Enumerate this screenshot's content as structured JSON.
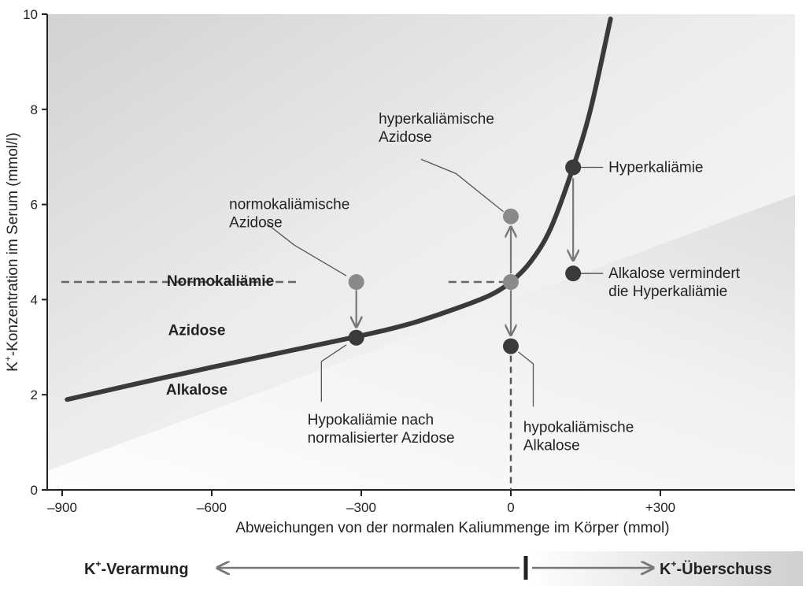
{
  "chart_data": {
    "type": "line",
    "xlabel": "Abweichungen von der normalen Kaliummenge im Körper (mmol)",
    "ylabel_prefix": "K",
    "ylabel_sup": "+",
    "ylabel_rest": "-Konzentration im Serum (mmol/l)",
    "xlim": [
      -930,
      570
    ],
    "ylim": [
      0,
      10
    ],
    "x_ticks": [
      {
        "value": -900,
        "label": "–900"
      },
      {
        "value": -600,
        "label": "–600"
      },
      {
        "value": -300,
        "label": "–300"
      },
      {
        "value": 0,
        "label": "0"
      },
      {
        "value": 300,
        "label": "+300"
      }
    ],
    "y_ticks": [
      {
        "value": 0,
        "label": "0"
      },
      {
        "value": 2,
        "label": "2"
      },
      {
        "value": 4,
        "label": "4"
      },
      {
        "value": 6,
        "label": "6"
      },
      {
        "value": 8,
        "label": "8"
      },
      {
        "value": 10,
        "label": "10"
      }
    ],
    "curve": [
      [
        -890,
        1.9
      ],
      [
        -700,
        2.35
      ],
      [
        -500,
        2.8
      ],
      [
        -310,
        3.22
      ],
      [
        -200,
        3.5
      ],
      [
        -100,
        3.85
      ],
      [
        -40,
        4.1
      ],
      [
        0,
        4.37
      ],
      [
        40,
        4.8
      ],
      [
        80,
        5.5
      ],
      [
        125,
        6.78
      ],
      [
        160,
        8.0
      ],
      [
        200,
        9.9
      ]
    ],
    "normal_level": 4.37,
    "normal_level_label": "Normokaliämie",
    "region_labels": [
      {
        "text": "Azidose",
        "x": -630,
        "y": 3.25
      },
      {
        "text": "Alkalose",
        "x": -630,
        "y": 2.0
      }
    ],
    "points": [
      {
        "id": "normo-azidose",
        "x": -310,
        "y": 4.37,
        "color": "#8a8a8a"
      },
      {
        "id": "hypo-nach-azidose",
        "x": -310,
        "y": 3.2,
        "color": "#3a3a3a"
      },
      {
        "id": "normal",
        "x": 0,
        "y": 4.37,
        "color": "#8a8a8a"
      },
      {
        "id": "hyper-azidose",
        "x": 0,
        "y": 5.75,
        "color": "#8a8a8a"
      },
      {
        "id": "hypo-alkalose",
        "x": 0,
        "y": 3.02,
        "color": "#3a3a3a"
      },
      {
        "id": "hyperkaliaemie",
        "x": 125,
        "y": 6.78,
        "color": "#3a3a3a"
      },
      {
        "id": "alkalose-vermindert",
        "x": 125,
        "y": 4.55,
        "color": "#3a3a3a"
      }
    ],
    "annotations": [
      {
        "id": "normokaliaemische-azidose",
        "lines": [
          "normokaliämische",
          "Azidose"
        ]
      },
      {
        "id": "hyperkaliaemische-azidose",
        "lines": [
          "hyperkaliämische",
          "Azidose"
        ]
      },
      {
        "id": "hyperkaliaemie",
        "lines": [
          "Hyperkaliämie"
        ]
      },
      {
        "id": "alkalose-vermindert",
        "lines": [
          "Alkalose vermindert",
          "die Hyperkaliämie"
        ]
      },
      {
        "id": "hypokaliaemie-nach",
        "lines": [
          "Hypokaliämie nach",
          "normalisierter Azidose"
        ]
      },
      {
        "id": "hypokaliaemische-alkalose",
        "lines": [
          "hypokaliämische",
          "Alkalose"
        ]
      }
    ]
  },
  "bottom_bar": {
    "left_prefix": "K",
    "left_sup": "+",
    "left_rest": "-Verarmung",
    "right_prefix": "K",
    "right_sup": "+",
    "right_rest": "-Überschuss"
  }
}
